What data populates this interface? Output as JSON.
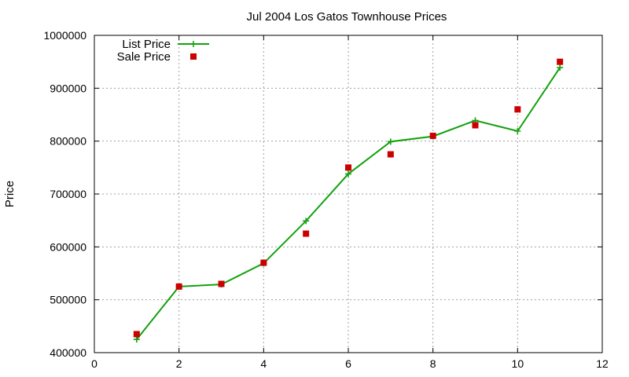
{
  "chart_data": {
    "type": "line",
    "title": "Jul 2004 Los Gatos Townhouse Prices",
    "xlabel": "",
    "ylabel": "Price",
    "xlim": [
      0,
      12
    ],
    "ylim": [
      400000,
      1000000
    ],
    "xticks": [
      0,
      2,
      4,
      6,
      8,
      10,
      12
    ],
    "yticks": [
      400000,
      500000,
      600000,
      700000,
      800000,
      900000,
      1000000
    ],
    "grid": true,
    "legend_position": "top-left",
    "series": [
      {
        "name": "List Price",
        "style": "line-plus",
        "color": "#13a10e",
        "x": [
          1,
          2,
          3,
          4,
          5,
          6,
          7,
          8,
          9,
          10,
          11
        ],
        "y": [
          425000,
          525000,
          529000,
          569000,
          649000,
          738000,
          799000,
          809000,
          839000,
          819000,
          939000
        ]
      },
      {
        "name": "Sale Price",
        "style": "square-points",
        "color": "#cc0000",
        "x": [
          1,
          2,
          3,
          4,
          5,
          6,
          7,
          8,
          9,
          10,
          11
        ],
        "y": [
          435000,
          525000,
          530000,
          570000,
          625000,
          750000,
          775000,
          810000,
          830000,
          860000,
          950000
        ]
      }
    ]
  }
}
